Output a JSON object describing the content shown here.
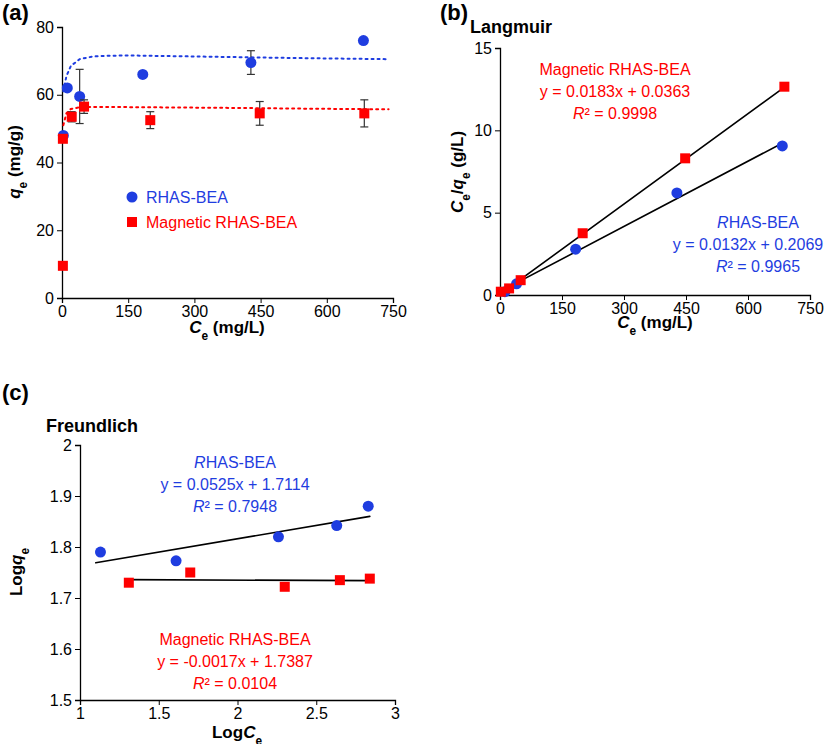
{
  "chart_data": [
    {
      "type": "scatter",
      "label": "(a)",
      "x_label": "Ce (mg/L)",
      "y_label": "qe (mg/g)",
      "xlim": [
        0,
        750
      ],
      "xticks": [
        0,
        150,
        300,
        450,
        600,
        750
      ],
      "ylim": [
        0,
        80
      ],
      "yticks": [
        0,
        20,
        40,
        60,
        80
      ],
      "legend": "left",
      "series": [
        {
          "name": "RHAS-BEA",
          "color": "#1f3de0",
          "marker": "circle",
          "x": [
            3,
            12,
            40,
            183,
            428,
            683
          ],
          "values": [
            48,
            62,
            59.5,
            66,
            69.5,
            76
          ],
          "errors": [
            null,
            null,
            8,
            null,
            3.5,
            null
          ]
        },
        {
          "name": "Magnetic RHAS-BEA",
          "color": "#ff0000",
          "marker": "square",
          "x": [
            2,
            2,
            22,
            50,
            200,
            448,
            685
          ],
          "values": [
            9.5,
            47,
            53.5,
            56.5,
            52.5,
            54.5,
            54.5
          ],
          "errors": [
            null,
            null,
            1.5,
            2,
            2.5,
            3.5,
            4
          ]
        },
        {
          "type": "line",
          "line_style": "dotted",
          "color": "#1f3de0",
          "x": [
            3,
            10,
            20,
            40,
            70,
            100,
            150,
            250,
            400,
            550,
            740
          ],
          "values": [
            61,
            65.5,
            68.5,
            70.5,
            71.3,
            71.5,
            71.6,
            71.4,
            71.1,
            70.8,
            70.5
          ]
        },
        {
          "type": "line",
          "line_style": "dotted",
          "color": "#ff0000",
          "x": [
            3,
            10,
            20,
            40,
            70,
            100,
            200,
            400,
            550,
            740
          ],
          "values": [
            51,
            54.5,
            55.8,
            56.3,
            56.4,
            56.4,
            56.3,
            56.1,
            55.9,
            55.7
          ]
        }
      ]
    },
    {
      "type": "scatter",
      "label": "(b)",
      "title": "Langmuir",
      "x_label": "Ce (mg/L)",
      "y_label": "Ce/qe (g/L)",
      "xlim": [
        0,
        750
      ],
      "xticks": [
        0,
        150,
        300,
        450,
        600,
        750
      ],
      "ylim": [
        0,
        15
      ],
      "yticks": [
        0,
        5,
        10,
        15
      ],
      "series": [
        {
          "color": "#1f3de0",
          "marker": "circle",
          "x": [
            12,
            40,
            183,
            428,
            683
          ],
          "values": [
            0.2,
            0.68,
            2.78,
            6.2,
            9.05
          ]
        },
        {
          "color": "#ff0000",
          "marker": "square",
          "x": [
            2,
            22,
            50,
            200,
            448,
            688
          ],
          "values": [
            0.2,
            0.4,
            0.9,
            3.75,
            8.3,
            12.65
          ]
        },
        {
          "type": "line",
          "line_style": "solid",
          "color": "#000000",
          "x": [
            5,
            690
          ],
          "values": [
            0.13,
            12.66
          ]
        },
        {
          "type": "line",
          "line_style": "solid",
          "color": "#000000",
          "x": [
            5,
            685
          ],
          "values": [
            0.27,
            9.25
          ]
        }
      ],
      "annotations": [
        {
          "text": "Magnetic RHAS-BEA",
          "color": "#ff0000"
        },
        {
          "text": "y = 0.0183x + 0.0363",
          "color": "#ff0000"
        },
        {
          "text": "R² = 0.9998",
          "color": "#ff0000"
        },
        {
          "text": "RHAS-BEA",
          "color": "#1f3de0"
        },
        {
          "text": "y = 0.0132x + 0.2069",
          "color": "#1f3de0"
        },
        {
          "text": "R² = 0.9965",
          "color": "#1f3de0"
        }
      ]
    },
    {
      "type": "scatter",
      "label": "(c)",
      "title": "Freundlich",
      "x_label": "LogCe",
      "y_label": "Logqe",
      "xlim": [
        1,
        3
      ],
      "xticks": [
        1,
        1.5,
        2,
        2.5,
        3
      ],
      "ylim": [
        1.5,
        2
      ],
      "yticks": [
        1.5,
        1.6,
        1.7,
        1.8,
        1.9,
        2
      ],
      "series": [
        {
          "color": "#1f3de0",
          "marker": "circle",
          "x": [
            1.13,
            1.61,
            2.26,
            2.63,
            2.83
          ],
          "values": [
            1.79,
            1.773,
            1.82,
            1.842,
            1.88
          ]
        },
        {
          "color": "#ff0000",
          "marker": "square",
          "x": [
            1.31,
            1.7,
            2.3,
            2.65,
            2.84
          ],
          "values": [
            1.73,
            1.75,
            1.722,
            1.735,
            1.738
          ]
        },
        {
          "type": "line",
          "line_style": "solid",
          "color": "#000000",
          "x": [
            1.1,
            2.84
          ],
          "values": [
            1.769,
            1.86
          ]
        },
        {
          "type": "line",
          "line_style": "solid",
          "color": "#000000",
          "x": [
            1.3,
            2.84
          ],
          "values": [
            1.736,
            1.734
          ]
        }
      ],
      "annotations": [
        {
          "text": "RHAS-BEA",
          "color": "#1f3de0"
        },
        {
          "text": "y = 0.0525x + 1.7114",
          "color": "#1f3de0"
        },
        {
          "text": "R² = 0.7948",
          "color": "#1f3de0"
        },
        {
          "text": "Magnetic RHAS-BEA",
          "color": "#ff0000"
        },
        {
          "text": "y = -0.0017x + 1.7387",
          "color": "#ff0000"
        },
        {
          "text": "R² = 0.0104",
          "color": "#ff0000"
        }
      ]
    }
  ]
}
